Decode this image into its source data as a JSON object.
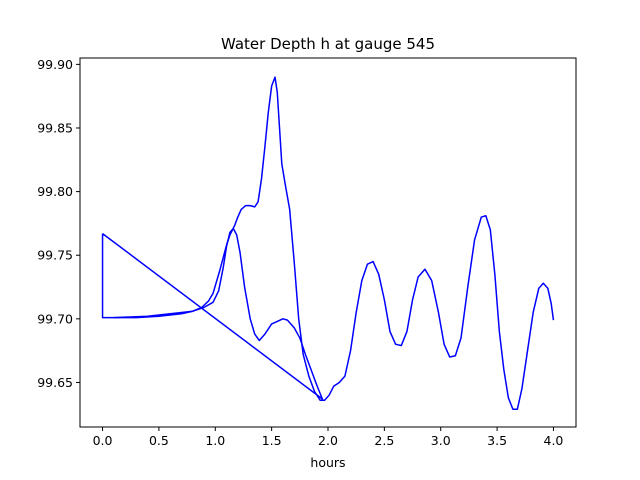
{
  "chart_data": {
    "type": "line",
    "title": "Water Depth h at gauge 545",
    "xlabel": "hours",
    "ylabel": "",
    "xlim": [
      -0.2,
      4.2
    ],
    "ylim": [
      99.615,
      99.905
    ],
    "xticks": [
      0.0,
      0.5,
      1.0,
      1.5,
      2.0,
      2.5,
      3.0,
      3.5,
      4.0
    ],
    "xtick_labels": [
      "0.0",
      "0.5",
      "1.0",
      "1.5",
      "2.0",
      "2.5",
      "3.0",
      "3.5",
      "4.0"
    ],
    "yticks": [
      99.65,
      99.7,
      99.75,
      99.8,
      99.85,
      99.9
    ],
    "ytick_labels": [
      "99.65",
      "99.70",
      "99.75",
      "99.80",
      "99.85",
      "99.90"
    ],
    "grid": false,
    "legend": "none",
    "line_color": "#0000ff",
    "series": [
      {
        "points": [
          [
            0.0,
            99.767
          ],
          [
            0.0,
            99.701
          ],
          [
            0.1,
            99.701
          ],
          [
            0.3,
            99.701
          ],
          [
            0.5,
            99.702
          ],
          [
            0.6,
            99.703
          ],
          [
            0.7,
            99.704
          ],
          [
            0.8,
            99.706
          ],
          [
            0.9,
            99.709
          ],
          [
            0.98,
            99.713
          ],
          [
            1.03,
            99.722
          ],
          [
            1.07,
            99.74
          ],
          [
            1.1,
            99.757
          ],
          [
            1.13,
            99.768
          ],
          [
            1.16,
            99.771
          ],
          [
            1.19,
            99.766
          ],
          [
            1.22,
            99.752
          ],
          [
            1.26,
            99.725
          ],
          [
            1.31,
            99.7
          ],
          [
            1.35,
            99.688
          ],
          [
            1.39,
            99.683
          ],
          [
            1.44,
            99.688
          ],
          [
            1.5,
            99.696
          ],
          [
            1.55,
            99.698
          ],
          [
            1.6,
            99.7
          ],
          [
            1.64,
            99.699
          ],
          [
            1.7,
            99.693
          ],
          [
            1.75,
            99.685
          ],
          [
            1.8,
            99.672
          ],
          [
            1.85,
            99.66
          ],
          [
            1.9,
            99.648
          ],
          [
            1.95,
            99.637
          ],
          [
            0.0,
            99.767
          ]
        ]
      },
      {
        "points": [
          [
            0.1,
            99.701
          ],
          [
            0.4,
            99.702
          ],
          [
            0.6,
            99.704
          ],
          [
            0.7,
            99.705
          ],
          [
            0.8,
            99.706
          ],
          [
            0.88,
            99.709
          ],
          [
            0.94,
            99.714
          ],
          [
            0.98,
            99.72
          ],
          [
            1.01,
            99.729
          ],
          [
            1.04,
            99.738
          ],
          [
            1.07,
            99.748
          ],
          [
            1.1,
            99.758
          ],
          [
            1.13,
            99.766
          ],
          [
            1.17,
            99.773
          ],
          [
            1.2,
            99.78
          ],
          [
            1.23,
            99.786
          ],
          [
            1.27,
            99.789
          ],
          [
            1.31,
            99.789
          ],
          [
            1.35,
            99.788
          ],
          [
            1.38,
            99.792
          ],
          [
            1.41,
            99.81
          ],
          [
            1.44,
            99.835
          ],
          [
            1.47,
            99.862
          ],
          [
            1.5,
            99.883
          ],
          [
            1.53,
            99.89
          ],
          [
            1.55,
            99.878
          ],
          [
            1.57,
            99.85
          ],
          [
            1.59,
            99.822
          ],
          [
            1.62,
            99.806
          ],
          [
            1.66,
            99.786
          ],
          [
            1.7,
            99.745
          ],
          [
            1.74,
            99.7
          ],
          [
            1.78,
            99.672
          ],
          [
            1.83,
            99.655
          ],
          [
            1.88,
            99.643
          ],
          [
            1.93,
            99.636
          ],
          [
            1.97,
            99.636
          ],
          [
            2.01,
            99.64
          ],
          [
            2.05,
            99.647
          ],
          [
            2.1,
            99.65
          ],
          [
            2.15,
            99.655
          ],
          [
            2.2,
            99.675
          ],
          [
            2.25,
            99.705
          ],
          [
            2.3,
            99.73
          ],
          [
            2.35,
            99.743
          ],
          [
            2.4,
            99.745
          ],
          [
            2.45,
            99.735
          ],
          [
            2.5,
            99.715
          ],
          [
            2.55,
            99.69
          ],
          [
            2.6,
            99.68
          ],
          [
            2.65,
            99.679
          ],
          [
            2.7,
            99.69
          ],
          [
            2.75,
            99.715
          ],
          [
            2.8,
            99.733
          ],
          [
            2.86,
            99.739
          ],
          [
            2.92,
            99.73
          ],
          [
            2.98,
            99.705
          ],
          [
            3.03,
            99.68
          ],
          [
            3.08,
            99.67
          ],
          [
            3.13,
            99.671
          ],
          [
            3.18,
            99.685
          ],
          [
            3.24,
            99.725
          ],
          [
            3.3,
            99.762
          ],
          [
            3.36,
            99.78
          ],
          [
            3.4,
            99.781
          ],
          [
            3.44,
            99.77
          ],
          [
            3.48,
            99.735
          ],
          [
            3.52,
            99.69
          ],
          [
            3.56,
            99.66
          ],
          [
            3.6,
            99.638
          ],
          [
            3.64,
            99.629
          ],
          [
            3.68,
            99.629
          ],
          [
            3.72,
            99.645
          ],
          [
            3.77,
            99.675
          ],
          [
            3.82,
            99.705
          ],
          [
            3.87,
            99.724
          ],
          [
            3.91,
            99.728
          ],
          [
            3.95,
            99.724
          ],
          [
            3.98,
            99.712
          ],
          [
            4.0,
            99.699
          ]
        ]
      }
    ]
  }
}
